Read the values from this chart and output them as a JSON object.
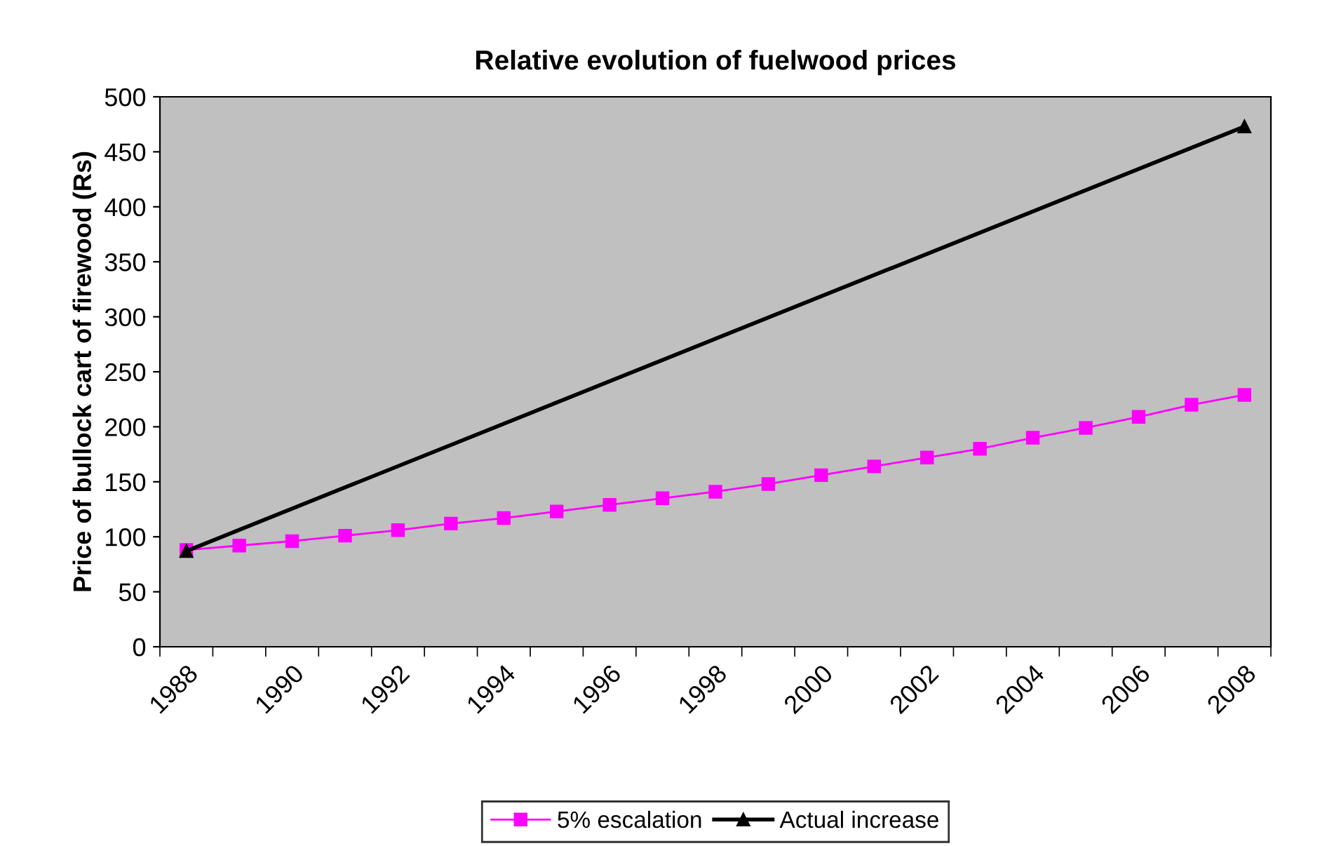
{
  "chart_data": {
    "type": "line",
    "title": "Relative evolution of fuelwood prices",
    "ylabel": "Price of bullock cart of firewood (Rs)",
    "categories": [
      "1988",
      null,
      "1990",
      null,
      "1992",
      null,
      "1994",
      null,
      "1996",
      null,
      "1998",
      null,
      "2000",
      null,
      "2002",
      null,
      "2004",
      null,
      "2006",
      null,
      "2008"
    ],
    "series": [
      {
        "name": "5% escalation",
        "color": "#ff00ff",
        "marker": "square",
        "values": [
          88,
          92,
          96,
          101,
          106,
          112,
          117,
          123,
          129,
          135,
          141,
          148,
          156,
          164,
          172,
          180,
          190,
          199,
          209,
          220,
          229
        ]
      },
      {
        "name": "Actual increase",
        "color": "#000000",
        "marker": "triangle",
        "values": [
          87,
          null,
          null,
          null,
          null,
          null,
          null,
          null,
          null,
          null,
          null,
          null,
          null,
          null,
          null,
          null,
          null,
          null,
          null,
          null,
          473
        ]
      }
    ],
    "ylim": [
      0,
      500
    ],
    "yticks": [
      0,
      50,
      100,
      150,
      200,
      250,
      300,
      350,
      400,
      450,
      500
    ],
    "grid": false,
    "legend": "bottom"
  }
}
